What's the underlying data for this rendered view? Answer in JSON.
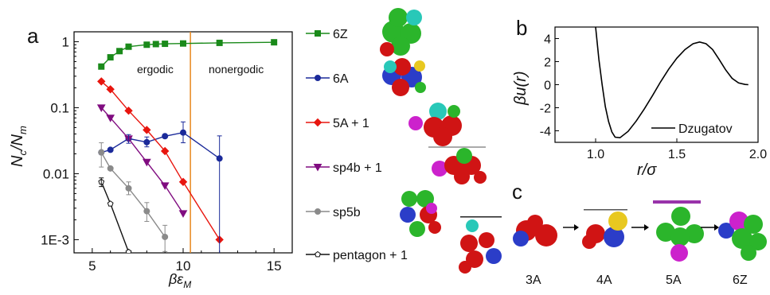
{
  "panels": {
    "a": "a",
    "b": "b",
    "c": "c"
  },
  "chart_data": [
    {
      "panel": "a",
      "type": "line",
      "xlabel": "βε_M",
      "ylabel": "N_c/N_m",
      "xlim": [
        4,
        16
      ],
      "ylim_log10": [
        -3.2,
        0.15
      ],
      "x_ticks": [
        5,
        10,
        15
      ],
      "y_ticks": [
        {
          "value": 1,
          "label": "1"
        },
        {
          "value": 0.1,
          "label": "0.1"
        },
        {
          "value": 0.01,
          "label": "0.01"
        },
        {
          "value": 0.001,
          "label": "1E-3"
        }
      ],
      "y_scale": "log",
      "vline_x": 10.4,
      "vline_color": "#e8871e",
      "annotations": [
        "ergodic",
        "nonergodic"
      ],
      "legend_position": "right, outside plot",
      "series": [
        {
          "name": "6Z",
          "color": "#1a8a1a",
          "marker": "square",
          "marker_fill": "#1a8a1a",
          "x": [
            5.5,
            6,
            6.5,
            7,
            8,
            8.5,
            9,
            10,
            12,
            15
          ],
          "y": [
            0.42,
            0.58,
            0.72,
            0.84,
            0.9,
            0.92,
            0.93,
            0.94,
            0.96,
            0.98
          ]
        },
        {
          "name": "6A",
          "color": "#1b2a9a",
          "marker": "circle",
          "marker_fill": "#1b2a9a",
          "x": [
            5.5,
            6,
            7,
            8,
            9,
            10,
            12
          ],
          "y": [
            0.021,
            0.023,
            0.034,
            0.03,
            0.037,
            0.042,
            0.017
          ]
        },
        {
          "name": "5A + 1",
          "color": "#e8150e",
          "marker": "diamond",
          "marker_fill": "#e8150e",
          "x": [
            5.5,
            6,
            7,
            8,
            9,
            10,
            12
          ],
          "y": [
            0.25,
            0.19,
            0.09,
            0.046,
            0.022,
            0.0075,
            0.001
          ]
        },
        {
          "name": "sp4b + 1",
          "color": "#800c80",
          "marker": "triangle-down",
          "marker_fill": "#800c80",
          "x": [
            5.5,
            6,
            7,
            8,
            9,
            10
          ],
          "y": [
            0.1,
            0.07,
            0.034,
            0.015,
            0.0066,
            0.0025
          ]
        },
        {
          "name": "sp5b",
          "color": "#8a8a8a",
          "marker": "circle",
          "marker_fill": "#8a8a8a",
          "x": [
            5.5,
            6,
            7,
            8,
            9
          ],
          "y": [
            0.021,
            0.012,
            0.006,
            0.0027,
            0.0011
          ]
        },
        {
          "name": "pentagon + 1",
          "color": "#111111",
          "marker": "pentagon",
          "marker_fill": "#ffffff",
          "x": [
            5.5,
            6,
            7
          ],
          "y": [
            0.0075,
            0.0035,
            0.00065
          ]
        }
      ]
    },
    {
      "panel": "b",
      "type": "line",
      "xlabel": "r/σ",
      "ylabel": "βu(r)",
      "xlim": [
        0.75,
        2.0
      ],
      "ylim": [
        -5,
        5
      ],
      "x_ticks": [
        1.0,
        1.5,
        2.0
      ],
      "y_ticks": [
        4,
        2,
        0,
        -2,
        -4
      ],
      "legend_position": "bottom-right",
      "series": [
        {
          "name": "Dzugatov",
          "color": "#000000",
          "x": [
            1.0,
            1.02,
            1.04,
            1.06,
            1.08,
            1.1,
            1.12,
            1.15,
            1.2,
            1.25,
            1.3,
            1.35,
            1.4,
            1.45,
            1.5,
            1.55,
            1.6,
            1.64,
            1.68,
            1.72,
            1.76,
            1.8,
            1.84,
            1.88,
            1.92,
            1.94
          ],
          "y": [
            5.0,
            2.2,
            0.0,
            -1.9,
            -3.2,
            -4.1,
            -4.55,
            -4.6,
            -4.05,
            -3.15,
            -2.1,
            -0.95,
            0.25,
            1.35,
            2.3,
            3.05,
            3.55,
            3.7,
            3.55,
            3.05,
            2.2,
            1.3,
            0.55,
            0.15,
            0.02,
            0.0
          ]
        }
      ]
    }
  ],
  "cluster_images": [
    "6Z",
    "6A",
    "5A + 1",
    "sp4b + 1",
    "sp5b",
    "pentagon + 1"
  ],
  "sequence_c": {
    "labels": [
      "3A",
      "4A",
      "5A",
      "6Z"
    ],
    "arrow": "→"
  }
}
